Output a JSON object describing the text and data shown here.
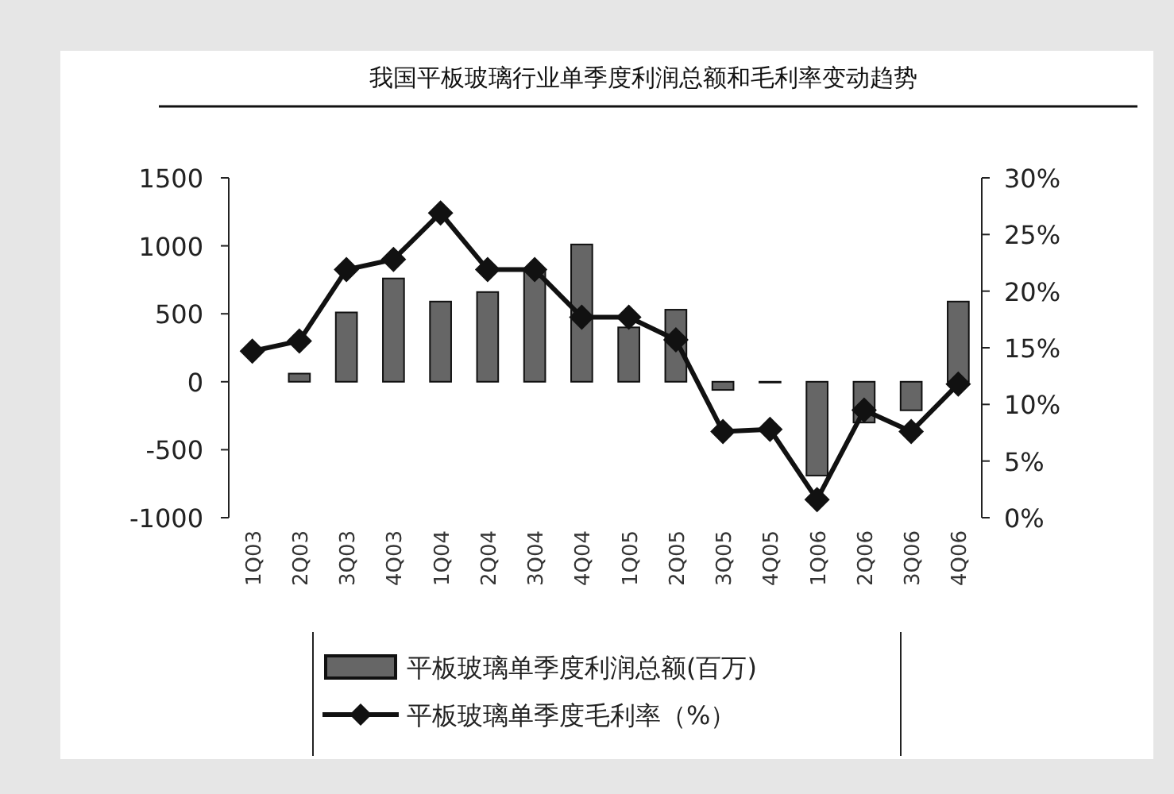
{
  "chart_data": {
    "type": "bar",
    "title": "我国平板玻璃行业单季度利润总额和毛利率变动趋势",
    "categories": [
      "1Q03",
      "2Q03",
      "3Q03",
      "4Q03",
      "1Q04",
      "2Q04",
      "3Q04",
      "4Q04",
      "1Q05",
      "2Q05",
      "3Q05",
      "4Q05",
      "1Q06",
      "2Q06",
      "3Q06",
      "4Q06"
    ],
    "series": [
      {
        "name": "平板玻璃单季度利润总额(百万)",
        "color": "#666666",
        "values": [
          null,
          60,
          510,
          760,
          590,
          660,
          820,
          1010,
          400,
          530,
          -60,
          0,
          -690,
          -300,
          -210,
          590
        ]
      },
      {
        "name": "平板玻璃单季度毛利率（%）",
        "type": "line",
        "axis": "y2",
        "color": "#111111",
        "marker": "diamond",
        "values": [
          14.7,
          15.6,
          21.9,
          22.8,
          26.9,
          21.9,
          21.9,
          17.7,
          17.7,
          15.7,
          7.6,
          7.8,
          1.6,
          9.5,
          7.6,
          11.8
        ]
      }
    ],
    "ylim": [
      -1000,
      1500
    ],
    "yticks": [
      -1000,
      -500,
      0,
      500,
      1000,
      1500
    ],
    "y2lim": [
      0,
      30
    ],
    "y2ticks": [
      {
        "value": 0,
        "label": "0%"
      },
      {
        "value": 5,
        "label": "5%"
      },
      {
        "value": 10,
        "label": "10%"
      },
      {
        "value": 15,
        "label": "15%"
      },
      {
        "value": 20,
        "label": "20%"
      },
      {
        "value": 25,
        "label": "25%"
      },
      {
        "value": 30,
        "label": "30%"
      }
    ],
    "legend": "bottom",
    "grid": false
  }
}
